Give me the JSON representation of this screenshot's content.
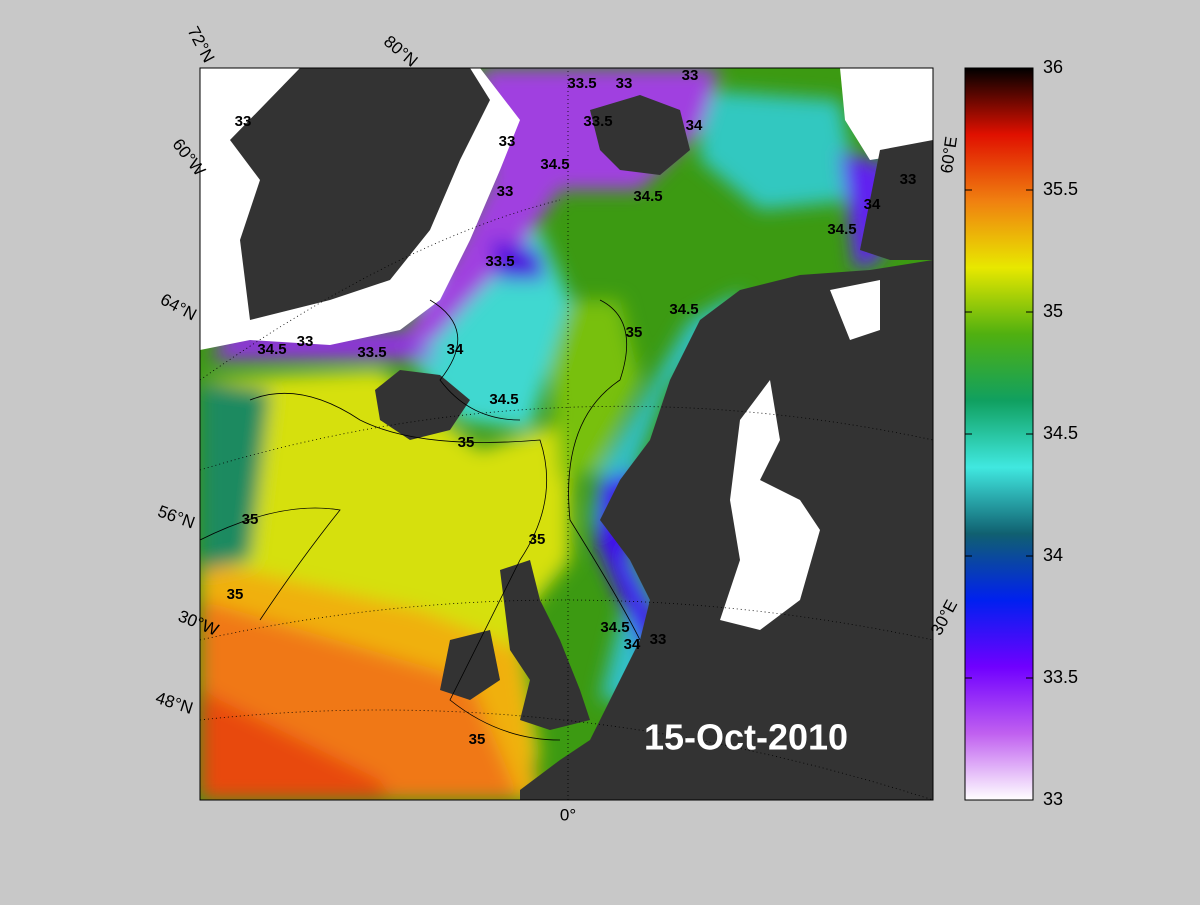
{
  "map": {
    "date": "15-Oct-2010",
    "graticule_labels": [
      "72°N",
      "80°N",
      "60°W",
      "64°N",
      "56°N",
      "30°W",
      "48°N",
      "0°",
      "30°E",
      "60°E"
    ],
    "contour_labels": [
      "33",
      "33.5",
      "33",
      "33",
      "33.5",
      "33",
      "34",
      "34.5",
      "34.5",
      "33",
      "33.5",
      "33",
      "34",
      "34.5",
      "33",
      "34.5",
      "33.5",
      "34",
      "34.5",
      "35",
      "35",
      "34.5",
      "35",
      "35",
      "35",
      "34.5",
      "34",
      "33",
      "35"
    ],
    "colorbar": {
      "lim": [
        33,
        36
      ],
      "ticks": [
        33,
        33.5,
        34,
        34.5,
        35,
        35.5,
        36
      ],
      "colormap": [
        "#ffffff",
        "#c060f0",
        "#7000ff",
        "#0020f0",
        "#106070",
        "#40e8e0",
        "#10a060",
        "#50b010",
        "#e8e800",
        "#f08010",
        "#e01000",
        "#000000"
      ]
    }
  }
}
